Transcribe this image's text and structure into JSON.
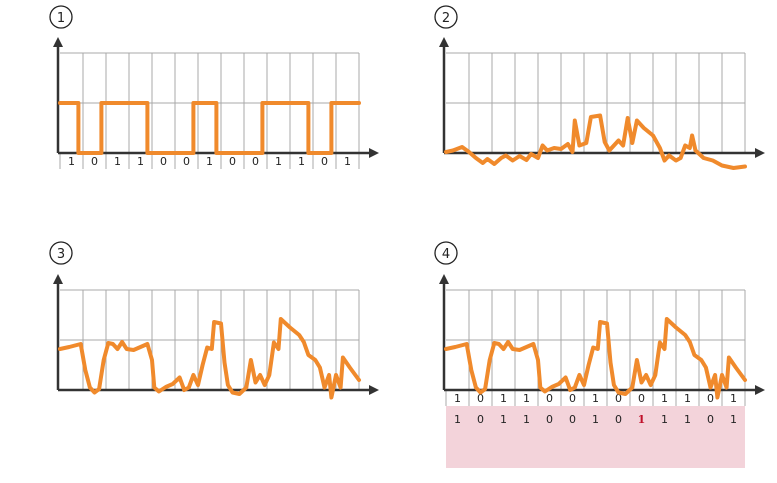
{
  "colors": {
    "signal": "#f08a2c",
    "grid": "#a9a9a9",
    "axis": "#333333",
    "decoded_bg": "#f3d3da",
    "error": "#c0102a"
  },
  "panels": [
    {
      "label": "1",
      "signal": [
        [
          0,
          1
        ],
        [
          0.8,
          1
        ],
        [
          0.8,
          0
        ],
        [
          1,
          0
        ],
        [
          1.8,
          0
        ],
        [
          1.8,
          1
        ],
        [
          2,
          1
        ],
        [
          3.8,
          1
        ],
        [
          3.8,
          0
        ],
        [
          4,
          0
        ],
        [
          5.8,
          0
        ],
        [
          5.8,
          1
        ],
        [
          6,
          1
        ],
        [
          6.8,
          1
        ],
        [
          6.8,
          0
        ],
        [
          7,
          0
        ],
        [
          8.8,
          0
        ],
        [
          8.8,
          1
        ],
        [
          9,
          1
        ],
        [
          10.8,
          1
        ],
        [
          10.8,
          0
        ],
        [
          11,
          0
        ],
        [
          11.8,
          0
        ],
        [
          11.8,
          1
        ],
        [
          13,
          1
        ]
      ],
      "bits": [
        "1",
        "0",
        "1",
        "1",
        "0",
        "0",
        "1",
        "0",
        "0",
        "1",
        "1",
        "0",
        "1"
      ]
    },
    {
      "label": "2",
      "signal": [
        [
          0,
          0.02
        ],
        [
          0.3,
          0.05
        ],
        [
          0.7,
          0.12
        ],
        [
          1,
          0.02
        ],
        [
          1.3,
          -0.1
        ],
        [
          1.6,
          -0.2
        ],
        [
          1.8,
          -0.12
        ],
        [
          2.1,
          -0.22
        ],
        [
          2.4,
          -0.1
        ],
        [
          2.6,
          -0.05
        ],
        [
          2.9,
          -0.15
        ],
        [
          3.2,
          -0.06
        ],
        [
          3.5,
          -0.14
        ],
        [
          3.7,
          -0.02
        ],
        [
          4.0,
          -0.1
        ],
        [
          4.2,
          0.15
        ],
        [
          4.4,
          0.05
        ],
        [
          4.7,
          0.1
        ],
        [
          5,
          0.08
        ],
        [
          5.3,
          0.18
        ],
        [
          5.5,
          0.02
        ],
        [
          5.6,
          0.65
        ],
        [
          5.8,
          0.15
        ],
        [
          6.1,
          0.2
        ],
        [
          6.3,
          0.72
        ],
        [
          6.7,
          0.75
        ],
        [
          6.9,
          0.22
        ],
        [
          7.1,
          0.05
        ],
        [
          7.3,
          0.15
        ],
        [
          7.5,
          0.25
        ],
        [
          7.7,
          0.15
        ],
        [
          7.9,
          0.7
        ],
        [
          8.0,
          0.45
        ],
        [
          8.1,
          0.2
        ],
        [
          8.3,
          0.65
        ],
        [
          8.6,
          0.5
        ],
        [
          9,
          0.35
        ],
        [
          9.3,
          0.1
        ],
        [
          9.5,
          -0.15
        ],
        [
          9.7,
          -0.05
        ],
        [
          10,
          -0.15
        ],
        [
          10.2,
          -0.1
        ],
        [
          10.4,
          0.15
        ],
        [
          10.6,
          0.1
        ],
        [
          10.7,
          0.35
        ],
        [
          10.85,
          0.05
        ],
        [
          11.2,
          -0.1
        ],
        [
          11.6,
          -0.15
        ],
        [
          12,
          -0.25
        ],
        [
          12.5,
          -0.3
        ],
        [
          13,
          -0.27
        ]
      ]
    },
    {
      "label": "3",
      "signal": [
        [
          0,
          0.82
        ],
        [
          0.4,
          0.86
        ],
        [
          0.9,
          0.92
        ],
        [
          1.1,
          0.4
        ],
        [
          1.3,
          0.05
        ],
        [
          1.5,
          -0.05
        ],
        [
          1.7,
          0.02
        ],
        [
          1.9,
          0.6
        ],
        [
          2.1,
          0.94
        ],
        [
          2.3,
          0.92
        ],
        [
          2.5,
          0.82
        ],
        [
          2.7,
          0.96
        ],
        [
          2.9,
          0.82
        ],
        [
          3.2,
          0.8
        ],
        [
          3.6,
          0.88
        ],
        [
          3.8,
          0.92
        ],
        [
          4.0,
          0.6
        ],
        [
          4.1,
          0.05
        ],
        [
          4.3,
          -0.03
        ],
        [
          4.6,
          0.06
        ],
        [
          4.9,
          0.12
        ],
        [
          5.2,
          0.25
        ],
        [
          5.4,
          0.0
        ],
        [
          5.6,
          0.05
        ],
        [
          5.8,
          0.3
        ],
        [
          6.0,
          0.1
        ],
        [
          6.2,
          0.5
        ],
        [
          6.4,
          0.85
        ],
        [
          6.6,
          0.82
        ],
        [
          6.7,
          1.36
        ],
        [
          7.0,
          1.33
        ],
        [
          7.15,
          0.55
        ],
        [
          7.3,
          0.1
        ],
        [
          7.5,
          -0.05
        ],
        [
          7.8,
          -0.08
        ],
        [
          8.1,
          0.05
        ],
        [
          8.3,
          0.6
        ],
        [
          8.5,
          0.15
        ],
        [
          8.7,
          0.3
        ],
        [
          8.9,
          0.1
        ],
        [
          9.1,
          0.3
        ],
        [
          9.3,
          0.95
        ],
        [
          9.5,
          0.82
        ],
        [
          9.6,
          1.42
        ],
        [
          10,
          1.25
        ],
        [
          10.4,
          1.1
        ],
        [
          10.6,
          0.96
        ],
        [
          10.8,
          0.7
        ],
        [
          11.1,
          0.6
        ],
        [
          11.3,
          0.45
        ],
        [
          11.5,
          0.05
        ],
        [
          11.7,
          0.3
        ],
        [
          11.8,
          -0.15
        ],
        [
          12,
          0.3
        ],
        [
          12.2,
          0.05
        ],
        [
          12.3,
          0.65
        ],
        [
          12.6,
          0.45
        ],
        [
          13,
          0.2
        ]
      ]
    },
    {
      "label": "4",
      "signal": [
        [
          0,
          0.82
        ],
        [
          0.4,
          0.86
        ],
        [
          0.9,
          0.92
        ],
        [
          1.1,
          0.4
        ],
        [
          1.3,
          0.05
        ],
        [
          1.5,
          -0.05
        ],
        [
          1.7,
          0.02
        ],
        [
          1.9,
          0.6
        ],
        [
          2.1,
          0.94
        ],
        [
          2.3,
          0.92
        ],
        [
          2.5,
          0.82
        ],
        [
          2.7,
          0.96
        ],
        [
          2.9,
          0.82
        ],
        [
          3.2,
          0.8
        ],
        [
          3.6,
          0.88
        ],
        [
          3.8,
          0.92
        ],
        [
          4.0,
          0.6
        ],
        [
          4.1,
          0.05
        ],
        [
          4.3,
          -0.03
        ],
        [
          4.6,
          0.06
        ],
        [
          4.9,
          0.12
        ],
        [
          5.2,
          0.25
        ],
        [
          5.4,
          0.0
        ],
        [
          5.6,
          0.05
        ],
        [
          5.8,
          0.3
        ],
        [
          6.0,
          0.1
        ],
        [
          6.2,
          0.5
        ],
        [
          6.4,
          0.85
        ],
        [
          6.6,
          0.82
        ],
        [
          6.7,
          1.36
        ],
        [
          7.0,
          1.33
        ],
        [
          7.15,
          0.55
        ],
        [
          7.3,
          0.1
        ],
        [
          7.5,
          -0.05
        ],
        [
          7.8,
          -0.08
        ],
        [
          8.1,
          0.05
        ],
        [
          8.3,
          0.6
        ],
        [
          8.5,
          0.15
        ],
        [
          8.7,
          0.3
        ],
        [
          8.9,
          0.1
        ],
        [
          9.1,
          0.3
        ],
        [
          9.3,
          0.95
        ],
        [
          9.5,
          0.82
        ],
        [
          9.6,
          1.42
        ],
        [
          10,
          1.25
        ],
        [
          10.4,
          1.1
        ],
        [
          10.6,
          0.96
        ],
        [
          10.8,
          0.7
        ],
        [
          11.1,
          0.6
        ],
        [
          11.3,
          0.45
        ],
        [
          11.5,
          0.05
        ],
        [
          11.7,
          0.3
        ],
        [
          11.8,
          -0.15
        ],
        [
          12,
          0.3
        ],
        [
          12.2,
          0.05
        ],
        [
          12.3,
          0.65
        ],
        [
          12.6,
          0.45
        ],
        [
          13,
          0.2
        ]
      ],
      "bits": [
        "1",
        "0",
        "1",
        "1",
        "0",
        "0",
        "1",
        "0",
        "0",
        "1",
        "1",
        "0",
        "1"
      ],
      "decoded": [
        "1",
        "0",
        "1",
        "1",
        "0",
        "0",
        "1",
        "0",
        "1",
        "1",
        "1",
        "0",
        "1"
      ],
      "error_index": 8
    }
  ]
}
